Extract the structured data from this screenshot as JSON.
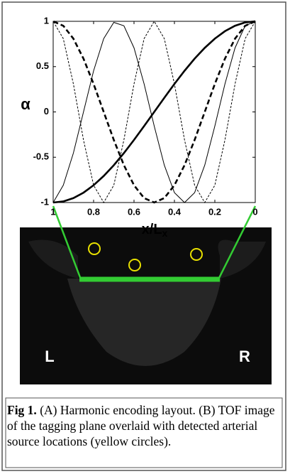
{
  "chart_data": {
    "type": "line",
    "ylabel": "α",
    "xlabel": {
      "text": "x/L",
      "subscript": "x"
    },
    "x": [
      0,
      0.05,
      0.1,
      0.15,
      0.2,
      0.25,
      0.3,
      0.35,
      0.4,
      0.45,
      0.5,
      0.55,
      0.6,
      0.65,
      0.7,
      0.75,
      0.8,
      0.85,
      0.9,
      0.95,
      1
    ],
    "xlim": [
      1,
      0
    ],
    "xticks": [
      1,
      0.8,
      0.6,
      0.4,
      0.2,
      0
    ],
    "ylim": [
      -1,
      1
    ],
    "yticks": [
      -1,
      -0.5,
      0,
      0.5,
      1
    ],
    "series": [
      {
        "color": "#000000",
        "width": 2.6,
        "dash": false,
        "values": [
          1,
          0.988,
          0.951,
          0.891,
          0.809,
          0.707,
          0.588,
          0.454,
          0.309,
          0.156,
          0,
          -0.156,
          -0.309,
          -0.454,
          -0.588,
          -0.707,
          -0.809,
          -0.891,
          -0.951,
          -0.988,
          -1
        ]
      },
      {
        "color": "#000000",
        "width": 2.6,
        "dash": true,
        "values": [
          1,
          0.951,
          0.809,
          0.588,
          0.309,
          0,
          -0.309,
          -0.588,
          -0.809,
          -0.951,
          -1,
          -0.951,
          -0.809,
          -0.588,
          -0.309,
          0,
          0.309,
          0.588,
          0.809,
          0.951,
          1
        ]
      },
      {
        "color": "#000000",
        "width": 1,
        "dash": false,
        "values": [
          1,
          0.951,
          0.707,
          0.309,
          -0.156,
          -0.588,
          -0.891,
          -1,
          -0.891,
          -0.588,
          -0.156,
          0.309,
          0.707,
          0.951,
          0.988,
          0.809,
          0.454,
          0,
          -0.454,
          -0.809,
          -1
        ]
      },
      {
        "color": "#000000",
        "width": 1,
        "dash": true,
        "values": [
          1,
          0.809,
          0.309,
          -0.309,
          -0.809,
          -1,
          -0.809,
          -0.309,
          0.309,
          0.809,
          1,
          0.809,
          0.309,
          -0.309,
          -0.809,
          -1,
          -0.809,
          -0.309,
          0.309,
          0.809,
          1
        ]
      }
    ]
  },
  "image": {
    "left_label": "L",
    "right_label": "R"
  },
  "caption": {
    "label": "Fig 1.",
    "text": "(A) Harmonic encoding layout. (B) TOF image of the tagging plane overlaid with detected arterial source locations (yellow circles)."
  }
}
